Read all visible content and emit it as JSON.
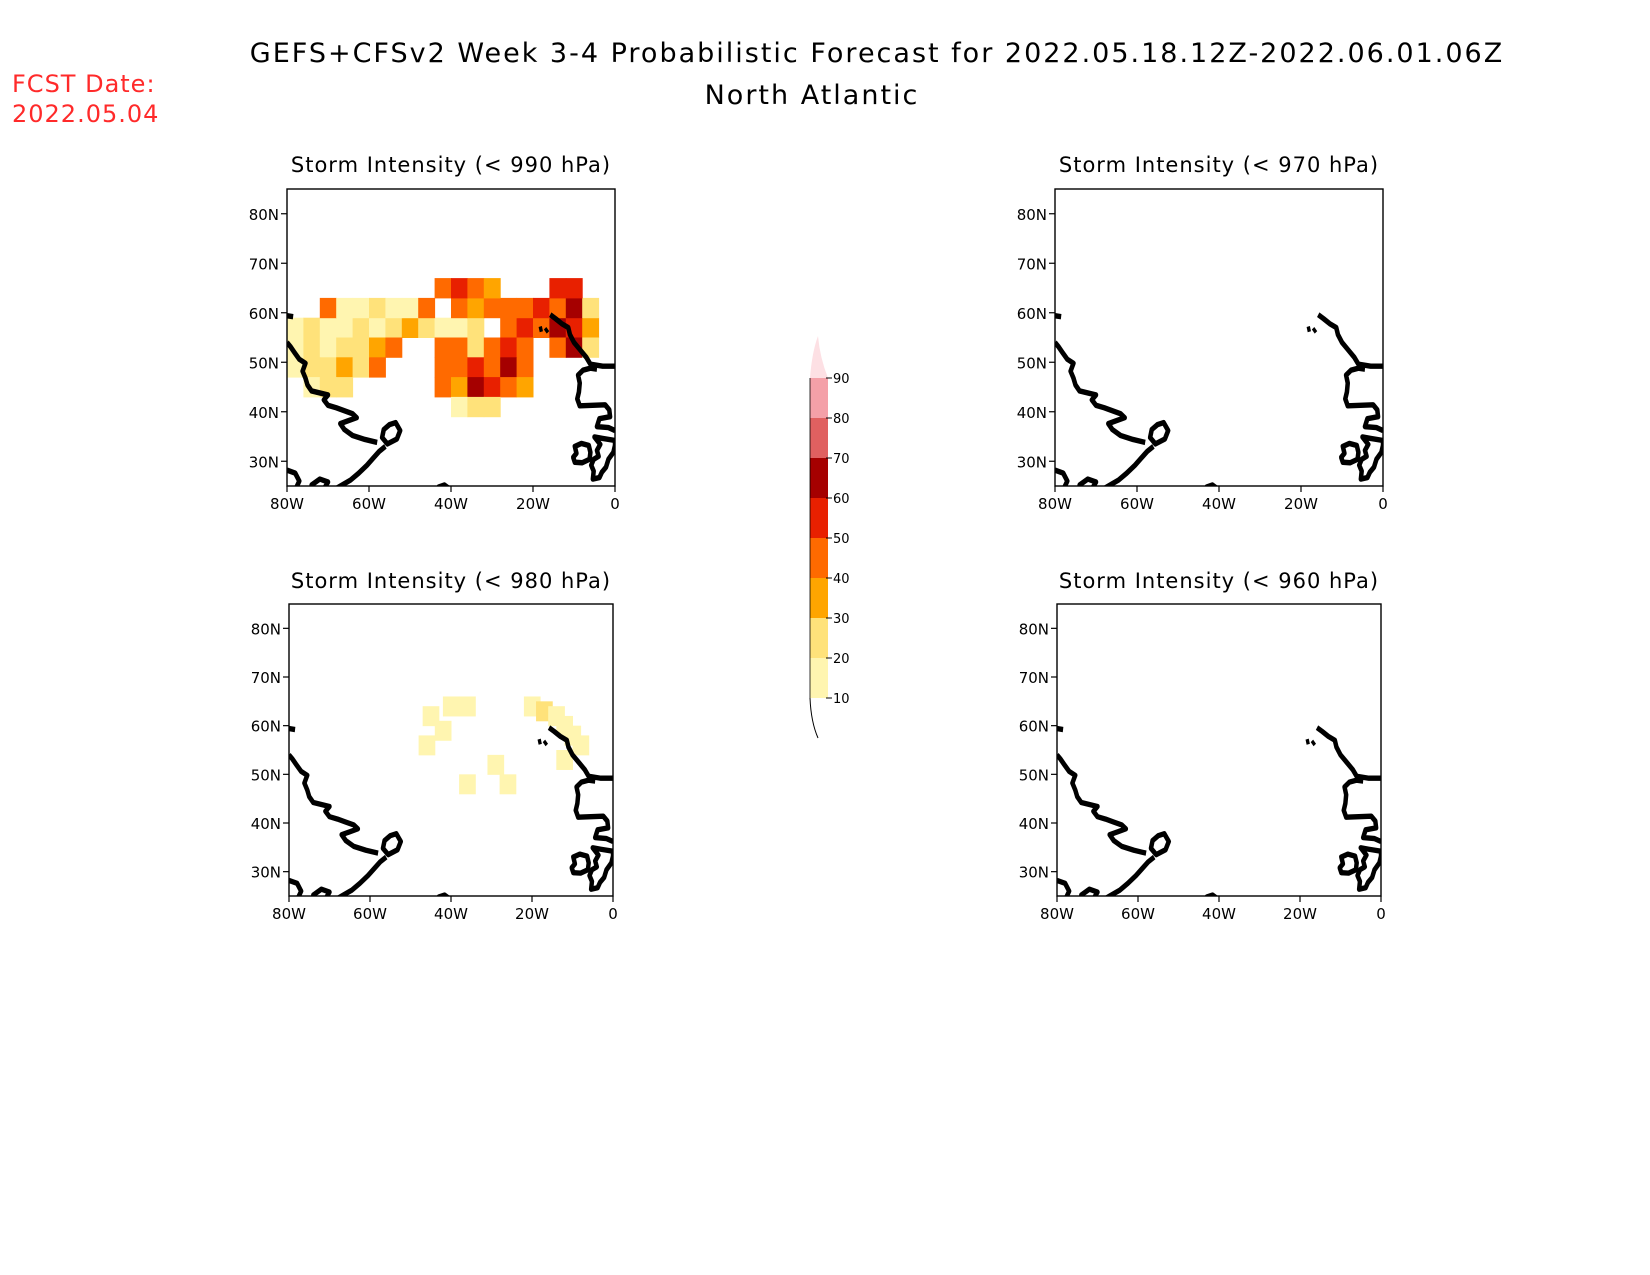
{
  "title": {
    "line1": "GEFS+CFSv2 Week 3-4 Probabilistic Forecast for 2022.05.18.12Z-2022.06.01.06Z",
    "line2": "North Atlantic"
  },
  "fcst_date": {
    "label": "FCST Date:",
    "value": "2022.05.04"
  },
  "axes": {
    "lon_ticks": [
      "80W",
      "60W",
      "40W",
      "20W",
      "0"
    ],
    "lat_ticks": [
      "80N",
      "70N",
      "60N",
      "50N",
      "40N",
      "30N"
    ],
    "lon_range": [
      -80,
      0
    ],
    "lat_range": [
      25,
      85
    ]
  },
  "colorbar": {
    "levels": [
      "10",
      "20",
      "30",
      "40",
      "50",
      "60",
      "70",
      "80",
      "90"
    ],
    "colors": [
      "#fff5b0",
      "#ffe27a",
      "#ffa500",
      "#ff6a00",
      "#e82000",
      "#a50000",
      "#e06060",
      "#f4a0a8",
      "#fde0e4"
    ]
  },
  "panels": [
    {
      "title": "Storm Intensity (< 990 hPa)",
      "cells": [
        {
          "lon": -78,
          "lat": 57,
          "v": 12
        },
        {
          "lon": -74,
          "lat": 57,
          "v": 22
        },
        {
          "lon": -70,
          "lat": 57,
          "v": 18
        },
        {
          "lon": -66,
          "lat": 57,
          "v": 15
        },
        {
          "lon": -62,
          "lat": 57,
          "v": 22
        },
        {
          "lon": -58,
          "lat": 57,
          "v": 12
        },
        {
          "lon": -54,
          "lat": 57,
          "v": 25
        },
        {
          "lon": -50,
          "lat": 57,
          "v": 35
        },
        {
          "lon": -46,
          "lat": 57,
          "v": 28
        },
        {
          "lon": -42,
          "lat": 57,
          "v": 18
        },
        {
          "lon": -38,
          "lat": 57,
          "v": 12
        },
        {
          "lon": -34,
          "lat": 57,
          "v": 25
        },
        {
          "lon": -26,
          "lat": 57,
          "v": 45
        },
        {
          "lon": -22,
          "lat": 57,
          "v": 52
        },
        {
          "lon": -18,
          "lat": 57,
          "v": 48
        },
        {
          "lon": -14,
          "lat": 57,
          "v": 62
        },
        {
          "lon": -10,
          "lat": 57,
          "v": 55
        },
        {
          "lon": -6,
          "lat": 57,
          "v": 35
        },
        {
          "lon": -70,
          "lat": 61,
          "v": 45
        },
        {
          "lon": -66,
          "lat": 61,
          "v": 18
        },
        {
          "lon": -62,
          "lat": 61,
          "v": 15
        },
        {
          "lon": -58,
          "lat": 61,
          "v": 22
        },
        {
          "lon": -54,
          "lat": 61,
          "v": 15
        },
        {
          "lon": -50,
          "lat": 61,
          "v": 12
        },
        {
          "lon": -46,
          "lat": 61,
          "v": 42
        },
        {
          "lon": -38,
          "lat": 61,
          "v": 45
        },
        {
          "lon": -34,
          "lat": 61,
          "v": 38
        },
        {
          "lon": -30,
          "lat": 61,
          "v": 48
        },
        {
          "lon": -26,
          "lat": 61,
          "v": 40
        },
        {
          "lon": -22,
          "lat": 61,
          "v": 45
        },
        {
          "lon": -18,
          "lat": 61,
          "v": 55
        },
        {
          "lon": -14,
          "lat": 61,
          "v": 48
        },
        {
          "lon": -10,
          "lat": 61,
          "v": 62
        },
        {
          "lon": -6,
          "lat": 61,
          "v": 20
        },
        {
          "lon": -42,
          "lat": 65,
          "v": 45
        },
        {
          "lon": -38,
          "lat": 65,
          "v": 55
        },
        {
          "lon": -34,
          "lat": 65,
          "v": 48
        },
        {
          "lon": -30,
          "lat": 65,
          "v": 38
        },
        {
          "lon": -14,
          "lat": 65,
          "v": 58
        },
        {
          "lon": -10,
          "lat": 65,
          "v": 55
        },
        {
          "lon": -78,
          "lat": 53,
          "v": 15
        },
        {
          "lon": -74,
          "lat": 53,
          "v": 20
        },
        {
          "lon": -70,
          "lat": 53,
          "v": 12
        },
        {
          "lon": -66,
          "lat": 53,
          "v": 25
        },
        {
          "lon": -62,
          "lat": 53,
          "v": 20
        },
        {
          "lon": -58,
          "lat": 53,
          "v": 35
        },
        {
          "lon": -54,
          "lat": 53,
          "v": 45
        },
        {
          "lon": -42,
          "lat": 53,
          "v": 45
        },
        {
          "lon": -38,
          "lat": 53,
          "v": 48
        },
        {
          "lon": -34,
          "lat": 53,
          "v": 25
        },
        {
          "lon": -30,
          "lat": 53,
          "v": 42
        },
        {
          "lon": -26,
          "lat": 53,
          "v": 52
        },
        {
          "lon": -22,
          "lat": 53,
          "v": 40
        },
        {
          "lon": -14,
          "lat": 53,
          "v": 45
        },
        {
          "lon": -10,
          "lat": 53,
          "v": 65
        },
        {
          "lon": -6,
          "lat": 53,
          "v": 22
        },
        {
          "lon": -78,
          "lat": 49,
          "v": 18
        },
        {
          "lon": -74,
          "lat": 49,
          "v": 25
        },
        {
          "lon": -70,
          "lat": 49,
          "v": 20
        },
        {
          "lon": -66,
          "lat": 49,
          "v": 35
        },
        {
          "lon": -62,
          "lat": 49,
          "v": 22
        },
        {
          "lon": -58,
          "lat": 49,
          "v": 40
        },
        {
          "lon": -42,
          "lat": 49,
          "v": 48
        },
        {
          "lon": -38,
          "lat": 49,
          "v": 45
        },
        {
          "lon": -34,
          "lat": 49,
          "v": 55
        },
        {
          "lon": -30,
          "lat": 49,
          "v": 48
        },
        {
          "lon": -26,
          "lat": 49,
          "v": 65
        },
        {
          "lon": -22,
          "lat": 49,
          "v": 48
        },
        {
          "lon": -74,
          "lat": 45,
          "v": 15
        },
        {
          "lon": -70,
          "lat": 45,
          "v": 22
        },
        {
          "lon": -66,
          "lat": 45,
          "v": 20
        },
        {
          "lon": -42,
          "lat": 45,
          "v": 45
        },
        {
          "lon": -38,
          "lat": 45,
          "v": 38
        },
        {
          "lon": -34,
          "lat": 45,
          "v": 62
        },
        {
          "lon": -30,
          "lat": 45,
          "v": 55
        },
        {
          "lon": -26,
          "lat": 45,
          "v": 40
        },
        {
          "lon": -22,
          "lat": 45,
          "v": 35
        },
        {
          "lon": -38,
          "lat": 41,
          "v": 18
        },
        {
          "lon": -34,
          "lat": 41,
          "v": 25
        },
        {
          "lon": -30,
          "lat": 41,
          "v": 22
        }
      ]
    },
    {
      "title": "Storm Intensity (< 970 hPa)",
      "cells": []
    },
    {
      "title": "Storm Intensity (< 980 hPa)",
      "cells": [
        {
          "lon": -45,
          "lat": 62,
          "v": 12
        },
        {
          "lon": -40,
          "lat": 64,
          "v": 12
        },
        {
          "lon": -36,
          "lat": 64,
          "v": 11
        },
        {
          "lon": -42,
          "lat": 59,
          "v": 13
        },
        {
          "lon": -46,
          "lat": 56,
          "v": 11
        },
        {
          "lon": -20,
          "lat": 64,
          "v": 12
        },
        {
          "lon": -17,
          "lat": 63,
          "v": 24
        },
        {
          "lon": -14,
          "lat": 62,
          "v": 15
        },
        {
          "lon": -12,
          "lat": 60,
          "v": 14
        },
        {
          "lon": -10,
          "lat": 58,
          "v": 12
        },
        {
          "lon": -8,
          "lat": 56,
          "v": 15
        },
        {
          "lon": -12,
          "lat": 53,
          "v": 11
        },
        {
          "lon": -36,
          "lat": 48,
          "v": 12
        },
        {
          "lon": -26,
          "lat": 48,
          "v": 18
        },
        {
          "lon": -29,
          "lat": 52,
          "v": 11
        }
      ]
    },
    {
      "title": "Storm Intensity (< 960 hPa)",
      "cells": []
    }
  ]
}
